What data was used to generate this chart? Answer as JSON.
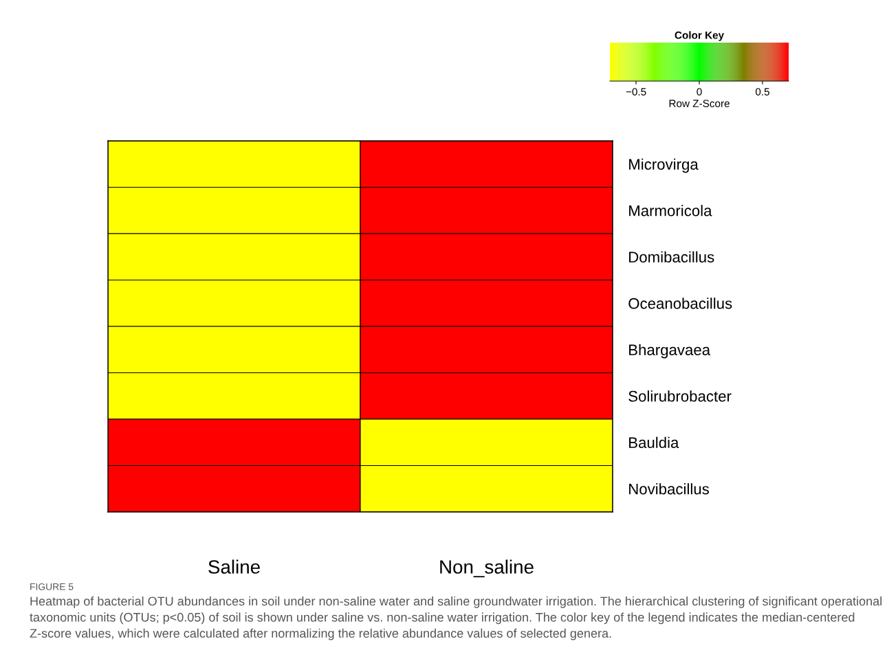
{
  "chart_data": {
    "type": "heatmap",
    "categories": [
      "Saline",
      "Non_saline"
    ],
    "y_categories": [
      "Microvirga",
      "Marmoricola",
      "Domibacillus",
      "Oceanobacillus",
      "Bhargavaea",
      "Solirubrobacter",
      "Bauldia",
      "Novibacillus"
    ],
    "cells": [
      [
        -0.707,
        0.707
      ],
      [
        -0.707,
        0.707
      ],
      [
        -0.707,
        0.707
      ],
      [
        -0.707,
        0.707
      ],
      [
        -0.707,
        0.707
      ],
      [
        -0.707,
        0.707
      ],
      [
        0.707,
        -0.707
      ],
      [
        0.707,
        -0.707
      ]
    ],
    "colors": [
      "#ffff00",
      "#00ff00",
      "#ff0000"
    ],
    "legend_title": "Color Key",
    "clabel": "Row Z-Score",
    "clim": [
      -0.707,
      0.707
    ],
    "cticks": [
      {
        "value": -0.5,
        "label": "−0.5"
      },
      0,
      0.5
    ],
    "annotations": [
      "FIGURE 5",
      "Heatmap of bacterial OTU abundances in soil under non-saline water and saline groundwater irrigation. The hierarchical clustering of significant operational taxonomic units (OTUs; p<0.05) of soil is shown under saline vs. non-saline water irrigation. The color key of the legend indicates the median-centered Z-score values, which were calculated after normalizing the relative abundance values of selected genera."
    ]
  }
}
